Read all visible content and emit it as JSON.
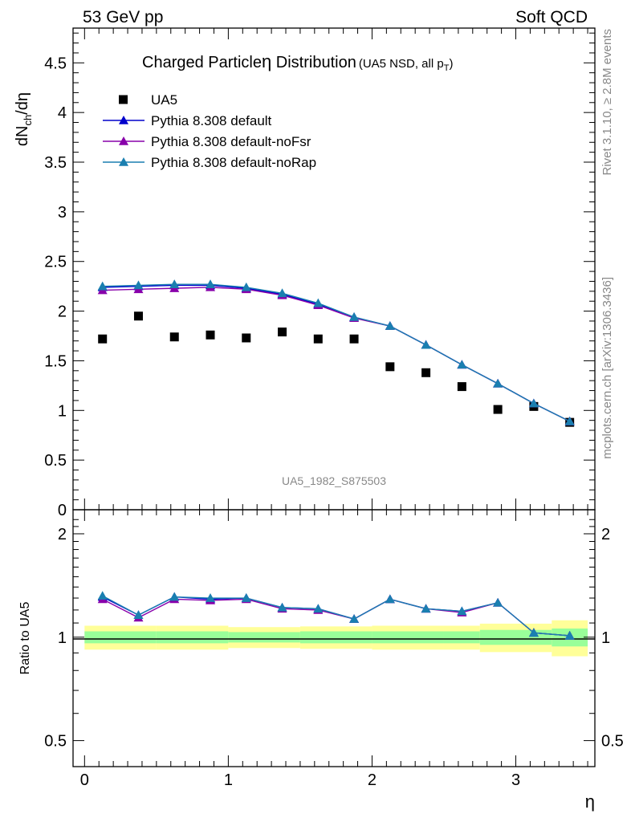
{
  "header": {
    "left": "53 GeV pp",
    "right": "Soft QCD"
  },
  "side_labels": {
    "rivet": "Rivet 3.1.10, ≥ 2.8M events",
    "mcplots": "mcplots.cern.ch [arXiv:1306.3436]"
  },
  "title": {
    "main": "Charged Particle",
    "eta": "η",
    "main2": " Distribution",
    "sub": "(UA5 NSD, all p",
    "sub_sub": "T",
    "sub_end": ")"
  },
  "analysis_id": "UA5_1982_S875503",
  "legend": [
    {
      "label": "UA5",
      "color": "#000000",
      "marker": "square"
    },
    {
      "label": "Pythia 8.308 default",
      "color": "#0000cc",
      "marker": "triangle"
    },
    {
      "label": "Pythia 8.308 default-noFsr",
      "color": "#8800aa",
      "marker": "triangle"
    },
    {
      "label": "Pythia 8.308 default-noRap",
      "color": "#1a7fb0",
      "marker": "triangle"
    }
  ],
  "axes": {
    "ylabel_top_main": "dN",
    "ylabel_top_sub": "ch",
    "ylabel_top_end": "/dη",
    "ylabel_bottom": "Ratio to UA5",
    "xlabel": "η",
    "top_yticks": [
      "0",
      "0.5",
      "1",
      "1.5",
      "2",
      "2.5",
      "3",
      "3.5",
      "4",
      "4.5"
    ],
    "bottom_yticks": [
      "0.5",
      "1",
      "2"
    ],
    "xticks": [
      "0",
      "1",
      "2",
      "3"
    ]
  },
  "chart_data": {
    "type": "scatter",
    "x": [
      0.125,
      0.375,
      0.625,
      0.875,
      1.125,
      1.375,
      1.625,
      1.875,
      2.125,
      2.375,
      2.625,
      2.875,
      3.125,
      3.375
    ],
    "xlim": [
      -0.08,
      3.55
    ],
    "top": {
      "ylim": [
        0,
        4.85
      ],
      "series": [
        {
          "name": "UA5",
          "values": [
            1.72,
            1.95,
            1.74,
            1.76,
            1.73,
            1.79,
            1.72,
            1.72,
            1.44,
            1.38,
            1.24,
            1.01,
            1.04,
            0.88
          ]
        },
        {
          "name": "Pythia 8.308 default",
          "values": [
            2.24,
            2.25,
            2.26,
            2.26,
            2.23,
            2.17,
            2.07,
            1.94,
            1.85,
            1.66,
            1.46,
            1.27,
            1.07,
            0.89
          ]
        },
        {
          "name": "Pythia 8.308 default-noFsr",
          "values": [
            2.21,
            2.22,
            2.23,
            2.24,
            2.22,
            2.16,
            2.06,
            1.93,
            1.85,
            1.66,
            1.46,
            1.27,
            1.07,
            0.89
          ]
        },
        {
          "name": "Pythia 8.308 default-noRap",
          "values": [
            2.25,
            2.26,
            2.27,
            2.27,
            2.24,
            2.18,
            2.08,
            1.94,
            1.85,
            1.66,
            1.46,
            1.27,
            1.07,
            0.89
          ]
        }
      ]
    },
    "ratio": {
      "ylim": [
        0.42,
        2.35
      ],
      "log_scale": true,
      "series": [
        {
          "name": "Pythia 8.308 default",
          "values": [
            1.31,
            1.16,
            1.31,
            1.29,
            1.3,
            1.22,
            1.21,
            1.13,
            1.29,
            1.21,
            1.19,
            1.26,
            1.03,
            1.01
          ]
        },
        {
          "name": "Pythia 8.308 default-noFsr",
          "values": [
            1.29,
            1.14,
            1.29,
            1.28,
            1.29,
            1.21,
            1.2,
            1.13,
            1.29,
            1.21,
            1.18,
            1.26,
            1.03,
            1.01
          ]
        },
        {
          "name": "Pythia 8.308 default-noRap",
          "values": [
            1.32,
            1.16,
            1.31,
            1.3,
            1.3,
            1.22,
            1.21,
            1.13,
            1.29,
            1.21,
            1.19,
            1.26,
            1.03,
            1.01
          ]
        }
      ],
      "bands": [
        {
          "xlo": 0.0,
          "xhi": 0.5,
          "green": 0.04,
          "yellow": 0.08
        },
        {
          "xlo": 0.5,
          "xhi": 1.0,
          "green": 0.04,
          "yellow": 0.08
        },
        {
          "xlo": 1.0,
          "xhi": 1.5,
          "green": 0.035,
          "yellow": 0.07
        },
        {
          "xlo": 1.5,
          "xhi": 2.0,
          "green": 0.04,
          "yellow": 0.075
        },
        {
          "xlo": 2.0,
          "xhi": 2.5,
          "green": 0.04,
          "yellow": 0.08
        },
        {
          "xlo": 2.5,
          "xhi": 2.75,
          "green": 0.04,
          "yellow": 0.08
        },
        {
          "xlo": 2.75,
          "xhi": 3.25,
          "green": 0.05,
          "yellow": 0.095
        },
        {
          "xlo": 3.25,
          "xhi": 3.5,
          "green": 0.06,
          "yellow": 0.12
        }
      ],
      "colors": {
        "green": "#99ff99",
        "yellow": "#ffff99"
      }
    }
  }
}
